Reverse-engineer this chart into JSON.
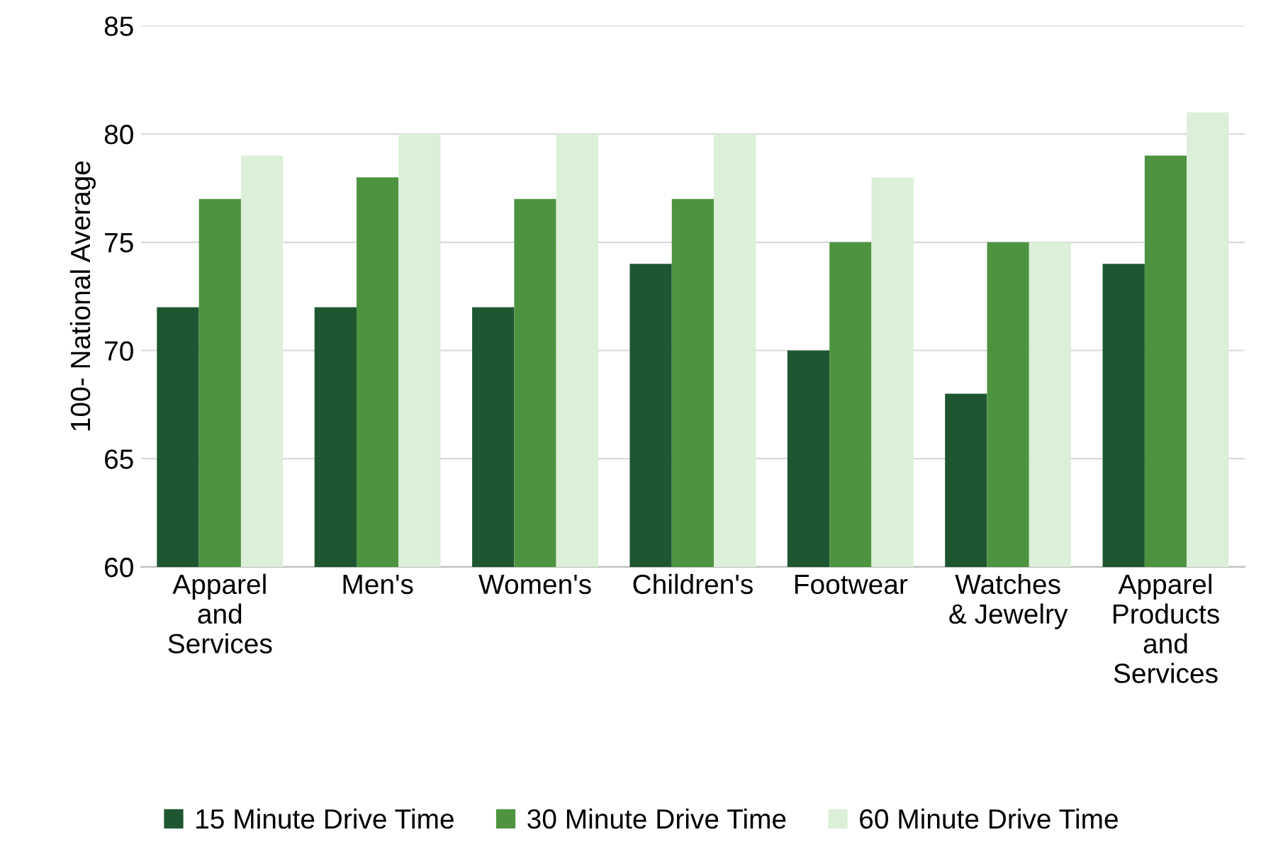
{
  "chart_data": {
    "type": "bar",
    "ylabel": "100- National Average",
    "categories": [
      "Apparel\nand\nServices",
      "Men's",
      "Women's",
      "Children's",
      "Footwear",
      "Watches\n& Jewelry",
      "Apparel\nProducts\nand\nServices"
    ],
    "series": [
      {
        "name": "15 Minute Drive Time",
        "color": "#1e5631",
        "values": [
          72,
          72,
          72,
          74,
          70,
          68,
          74
        ]
      },
      {
        "name": "30 Minute Drive Time",
        "color": "#4e9440",
        "values": [
          77,
          78,
          77,
          77,
          75,
          75,
          79
        ]
      },
      {
        "name": "60 Minute Drive Time",
        "color": "#dcefd8",
        "values": [
          79,
          80,
          80,
          80,
          78,
          75,
          81
        ]
      }
    ],
    "ylim": [
      60,
      85
    ],
    "yticks": [
      60,
      65,
      70,
      75,
      80,
      85
    ],
    "grid": "y",
    "legend": "bottom"
  }
}
